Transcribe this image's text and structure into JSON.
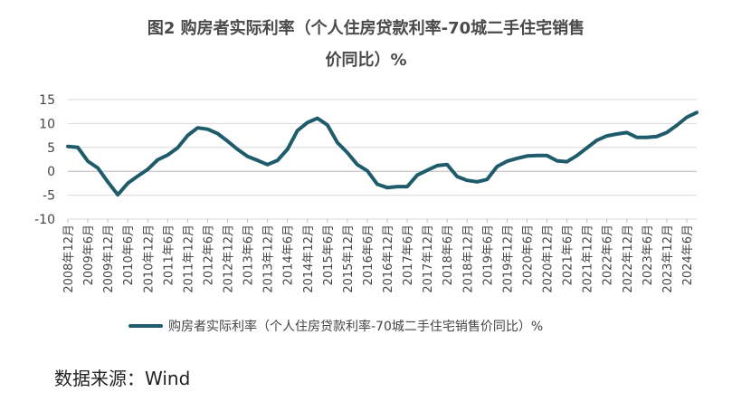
{
  "chart_data": {
    "type": "line",
    "title_line1": "图2 购房者实际利率（个人住房贷款利率-70城二手住宅销售",
    "title_line2": "价同比）%",
    "xlabel": "",
    "ylabel": "",
    "ylim": [
      -10,
      15
    ],
    "yticks": [
      -10,
      -5,
      0,
      5,
      10,
      15
    ],
    "grid": true,
    "legend_position": "bottom",
    "series_color": "#1f5c6b",
    "tick_labels": [
      "2008年12月",
      "2009年6月",
      "2009年12月",
      "2010年6月",
      "2010年12月",
      "2011年6月",
      "2011年12月",
      "2012年6月",
      "2012年12月",
      "2013年6月",
      "2013年12月",
      "2014年6月",
      "2014年12月",
      "2015年6月",
      "2015年12月",
      "2016年6月",
      "2016年12月",
      "2017年6月",
      "2017年12月",
      "2018年6月",
      "2018年12月",
      "2019年6月",
      "2019年12月",
      "2020年6月",
      "2020年12月",
      "2021年6月",
      "2021年12月",
      "2022年6月",
      "2022年12月",
      "2023年6月",
      "2023年12月",
      "2024年6月"
    ],
    "series": [
      {
        "name": "购房者实际利率（个人住房贷款利率-70城二手住宅销售价同比）%",
        "x": [
          0,
          0.5,
          1,
          1.5,
          2,
          2.5,
          3,
          3.5,
          4,
          4.5,
          5,
          5.5,
          6,
          6.5,
          7,
          7.5,
          8,
          8.5,
          9,
          9.5,
          10,
          10.5,
          11,
          11.5,
          12,
          12.5,
          13,
          13.5,
          14,
          14.5,
          15,
          15.5,
          16,
          16.5,
          17,
          17.5,
          18,
          18.5,
          19,
          19.5,
          20,
          20.5,
          21,
          21.5,
          22,
          22.5,
          23,
          23.5,
          24,
          24.5,
          25,
          25.5,
          26,
          26.5,
          27,
          27.5,
          28,
          28.5,
          29,
          29.5,
          30,
          30.5,
          31,
          31.5
        ],
        "values": [
          5.2,
          5.0,
          2.1,
          0.7,
          -2.2,
          -4.9,
          -2.5,
          -1.0,
          0.4,
          2.4,
          3.4,
          4.9,
          7.5,
          9.1,
          8.8,
          7.9,
          6.3,
          4.6,
          3.1,
          2.3,
          1.4,
          2.3,
          4.6,
          8.5,
          10.2,
          11.1,
          9.7,
          6.0,
          3.9,
          1.4,
          0.1,
          -2.7,
          -3.4,
          -3.2,
          -3.2,
          -0.8,
          0.2,
          1.2,
          1.4,
          -1.1,
          -1.9,
          -2.2,
          -1.7,
          1.0,
          2.1,
          2.7,
          3.2,
          3.3,
          3.3,
          2.2,
          2.0,
          3.3,
          4.9,
          6.5,
          7.4,
          7.8,
          8.1,
          7.1,
          7.1,
          7.3,
          8.1,
          9.6,
          11.3,
          12.3
        ]
      }
    ]
  },
  "source": "数据来源：Wind"
}
